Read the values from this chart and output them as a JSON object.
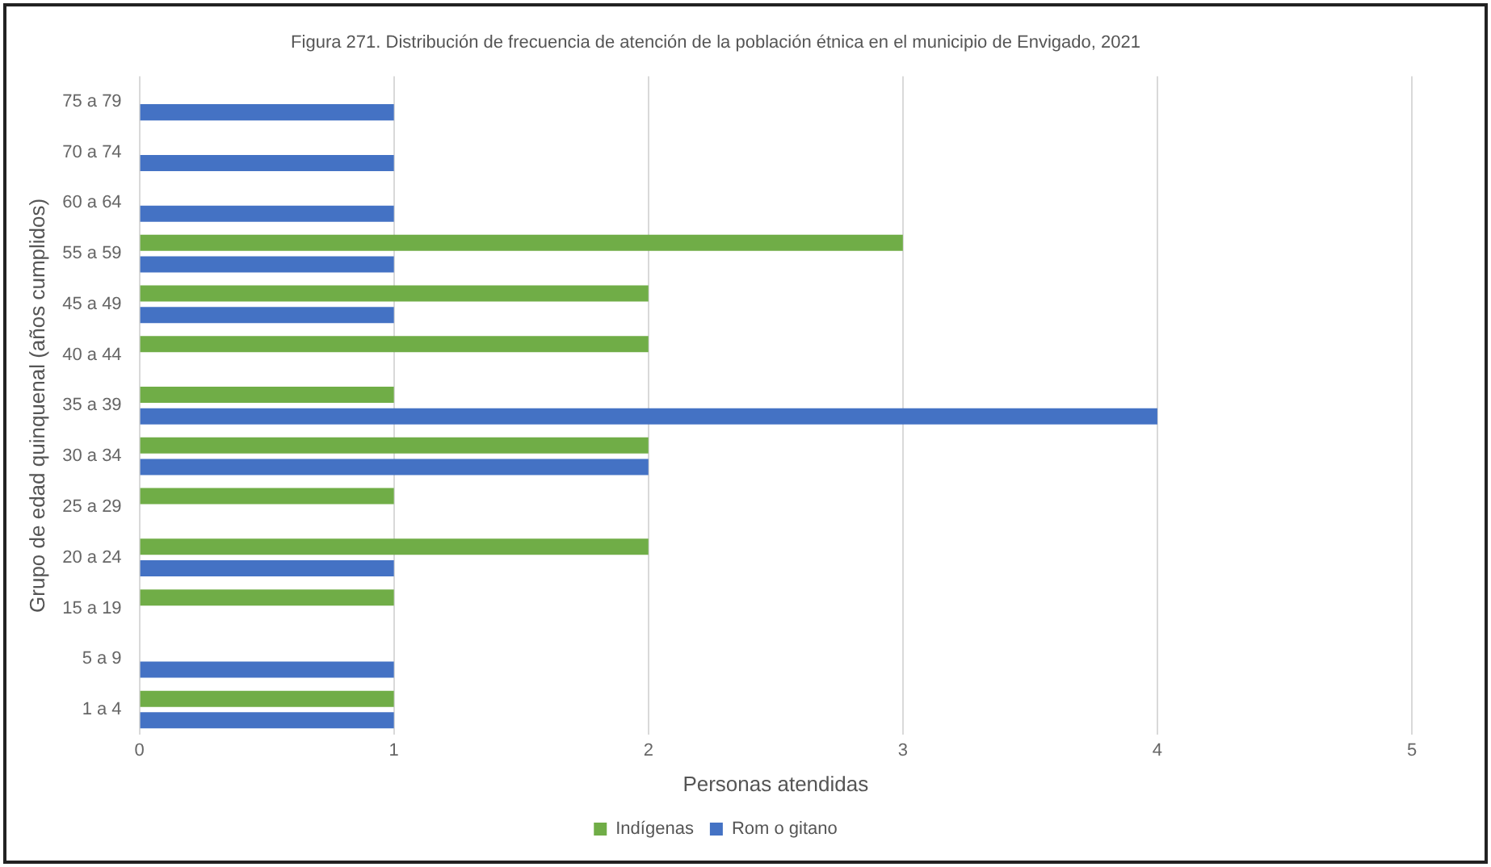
{
  "chart_data": {
    "type": "bar",
    "orientation": "horizontal",
    "title": "Figura 271. Distribución de frecuencia de atención de la población étnica en el municipio de Envigado, 2021",
    "xlabel": "Personas atendidas",
    "ylabel": "Grupo de edad quinquenal (años cumplidos)",
    "categories": [
      "75 a 79",
      "70 a 74",
      "60 a 64",
      "55 a 59",
      "45 a 49",
      "40 a 44",
      "35 a 39",
      "30 a 34",
      "25 a 29",
      "20 a 24",
      "15 a 19",
      "5 a 9",
      "1 a 4"
    ],
    "series": [
      {
        "name": "Indígenas",
        "color": "#70ad47",
        "values": [
          null,
          null,
          null,
          3,
          2,
          2,
          1,
          2,
          1,
          2,
          1,
          null,
          1
        ]
      },
      {
        "name": "Rom o gitano",
        "color": "#4472c4",
        "values": [
          1,
          1,
          1,
          1,
          1,
          null,
          4,
          2,
          null,
          1,
          null,
          1,
          1
        ]
      }
    ],
    "xlim": [
      0,
      5
    ],
    "xticks": [
      0,
      1,
      2,
      3,
      4,
      5
    ],
    "grid": "x",
    "legend": "bottom"
  }
}
